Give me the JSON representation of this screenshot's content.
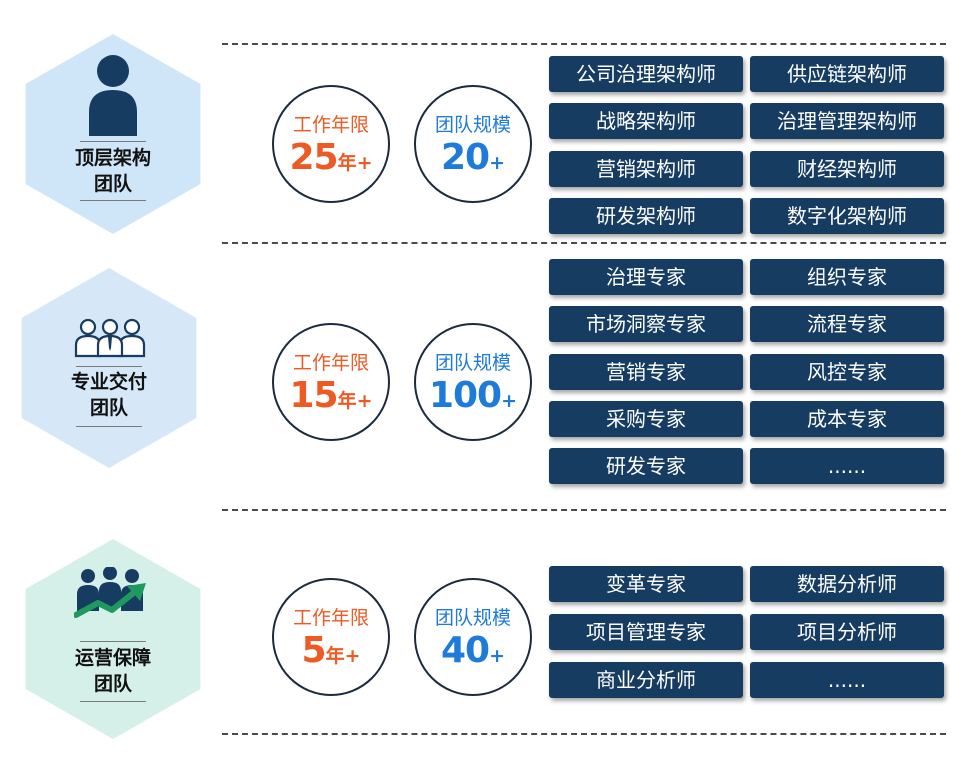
{
  "teams": [
    {
      "title_lines": [
        "顶层架构",
        "团队"
      ],
      "icon": "person-icon",
      "hex_color": "#cfe6f9",
      "years_label": "工作年限",
      "years_value": "25",
      "years_unit": "年+",
      "size_label": "团队规模",
      "size_value": "20",
      "size_unit": "+",
      "roles": [
        "公司治理架构师",
        "供应链架构师",
        "战略架构师",
        "治理管理架构师",
        "营销架构师",
        "财经架构师",
        "研发架构师",
        "数字化架构师"
      ]
    },
    {
      "title_lines": [
        "专业交付",
        "团队"
      ],
      "icon": "team-icon",
      "hex_color": "#d6e8f7",
      "years_label": "工作年限",
      "years_value": "15",
      "years_unit": "年+",
      "size_label": "团队规模",
      "size_value": "100",
      "size_unit": "+",
      "roles": [
        "治理专家",
        "组织专家",
        "市场洞察专家",
        "流程专家",
        "营销专家",
        "风控专家",
        "采购专家",
        "成本专家",
        "研发专家",
        "......"
      ]
    },
    {
      "title_lines": [
        "运营保障",
        "团队"
      ],
      "icon": "growth-team-icon",
      "hex_color": "#d5f0e8",
      "years_label": "工作年限",
      "years_value": "5",
      "years_unit": "年+",
      "size_label": "团队规模",
      "size_value": "40",
      "size_unit": "+",
      "roles": [
        "变革专家",
        "数据分析师",
        "项目管理专家",
        "项目分析师",
        "商业分析师",
        "......"
      ]
    }
  ],
  "colors": {
    "tag_bg": "#163d61",
    "years_accent": "#ee5a24",
    "size_accent": "#1e7bd9",
    "icon_dark": "#163d61",
    "icon_green": "#1f9a5f"
  }
}
